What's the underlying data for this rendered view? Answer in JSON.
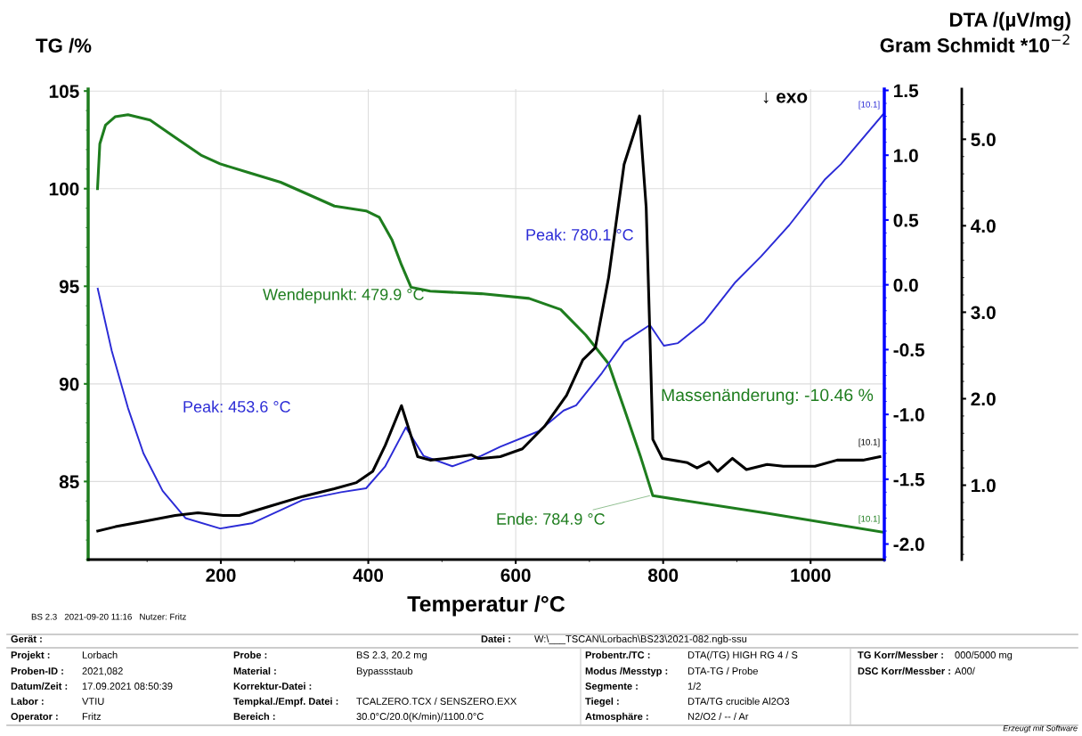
{
  "chart_data": {
    "type": "line",
    "xlabel": "Temperatur /°C",
    "ylabel": "TG /%",
    "y2label": "DTA /(µV/mg)",
    "y3label": "Gram Schmidt *10$^{−2}$",
    "xlim": [
      20,
      1100
    ],
    "xticks": [
      200,
      400,
      600,
      800,
      1000
    ],
    "ylim": [
      81,
      105.1
    ],
    "yticks": [
      85,
      90,
      95,
      100,
      105
    ],
    "y2lim": [
      -2.12,
      1.51
    ],
    "y2ticks": [
      {
        "value": -2,
        "label": "-2.0"
      },
      {
        "value": -1.5,
        "label": "-1.5"
      },
      {
        "value": -1,
        "label": "-1.0"
      },
      {
        "value": -0.5,
        "label": "-0.5"
      },
      {
        "value": 0,
        "label": "0.0"
      },
      {
        "value": 0.5,
        "label": "0.5"
      },
      {
        "value": 1,
        "label": "1.0"
      },
      {
        "value": 1.5,
        "label": "1.5"
      }
    ],
    "y3lim": [
      0.14,
      5.58
    ],
    "y3ticks": [
      {
        "value": 1,
        "label": "1.0"
      },
      {
        "value": 2,
        "label": "2.0"
      },
      {
        "value": 3,
        "label": "3.0"
      },
      {
        "value": 4,
        "label": "4.0"
      },
      {
        "value": 5,
        "label": "5.0"
      }
    ],
    "grid": true,
    "marker": "none",
    "line_style": "solid",
    "series": [
      {
        "color": "#1e7d1e",
        "axis": "y",
        "x": [
          32.7,
          35.8,
          43.6,
          56.5,
          74,
          104,
          138.5,
          173,
          199,
          238,
          281,
          320,
          354,
          397,
          415,
          432,
          445,
          458,
          484,
          553,
          618,
          661,
          695,
          726,
          747,
          769,
          786,
          941,
          1099
        ],
        "values": [
          100.0,
          102.29,
          103.26,
          103.68,
          103.79,
          103.51,
          102.61,
          101.72,
          101.27,
          100.82,
          100.33,
          99.68,
          99.11,
          98.86,
          98.53,
          97.39,
          96.1,
          94.95,
          94.75,
          94.62,
          94.38,
          93.81,
          92.5,
          91.03,
          88.75,
          86.31,
          84.27,
          83.37,
          82.4
        ]
      },
      {
        "color": "#2b2bd6",
        "axis": "y2",
        "x": [
          33,
          52,
          74,
          95,
          121,
          152,
          199,
          242,
          311,
          363,
          397,
          423,
          451,
          475,
          514,
          553,
          579,
          631,
          665,
          682,
          717,
          747,
          782,
          801,
          820,
          855,
          898,
          933,
          971,
          1019,
          1041,
          1099
        ],
        "values": [
          -0.03,
          -0.51,
          -0.95,
          -1.3,
          -1.59,
          -1.8,
          -1.88,
          -1.84,
          -1.66,
          -1.6,
          -1.57,
          -1.4,
          -1.1,
          -1.32,
          -1.4,
          -1.32,
          -1.25,
          -1.13,
          -0.97,
          -0.93,
          -0.68,
          -0.44,
          -0.31,
          -0.47,
          -0.45,
          -0.29,
          0.02,
          0.22,
          0.46,
          0.81,
          0.93,
          1.32
        ]
      },
      {
        "color": "#000000",
        "axis": "y3",
        "x": [
          33,
          57,
          95,
          138,
          169,
          203,
          225,
          268,
          311,
          354,
          384,
          406,
          423,
          445,
          458,
          467,
          484,
          505,
          540,
          549,
          553,
          579,
          609,
          639,
          669,
          691,
          708,
          726,
          747,
          768,
          777,
          782,
          786,
          799,
          833,
          846,
          862,
          874,
          894,
          913,
          941,
          963,
          1006,
          1036,
          1071,
          1094
        ],
        "values": [
          0.47,
          0.52,
          0.58,
          0.65,
          0.68,
          0.65,
          0.65,
          0.76,
          0.87,
          0.96,
          1.03,
          1.16,
          1.46,
          1.92,
          1.57,
          1.33,
          1.29,
          1.31,
          1.35,
          1.31,
          1.31,
          1.33,
          1.42,
          1.68,
          2.04,
          2.45,
          2.59,
          3.4,
          4.71,
          5.27,
          4.21,
          2.74,
          1.53,
          1.31,
          1.26,
          1.2,
          1.27,
          1.16,
          1.31,
          1.18,
          1.24,
          1.22,
          1.22,
          1.29,
          1.29,
          1.33
        ]
      }
    ],
    "annotations": [
      {
        "text": "Wendepunkt: 479.9 °C",
        "x": 479.9,
        "y": 94.8
      },
      "Peak: 453.6 °C",
      "Peak: 780.1 °C",
      {
        "text": "Ende: 784.9 °C",
        "x": 784.9,
        "y": 84.3
      },
      {
        "text": "Massenänderung: -10.46 %",
        "x": 785,
        "y": 90
      },
      "[10.1]",
      "[10.1]",
      {
        "text": "[10.1]",
        "x": 1099,
        "y": 82.4
      },
      "↓ exo",
      "BS 2.3   2021-09-20 11:16   Nutzer: Fritz",
      "Gerät :",
      "Datei :",
      "W:\\___TSCAN\\Lorbach\\BS23\\2021-082.ngb-ssu",
      "Projekt :",
      "Proben-ID :",
      "Datum/Zeit :",
      "Labor :",
      "Operator :",
      "Lorbach",
      "2021,082",
      "17.09.2021 08:50:39",
      "VTIU",
      "Fritz",
      "Probe :",
      "Material :",
      "Korrektur-Datei :",
      "Tempkal./Empf. Datei :",
      "Bereich :",
      "BS 2.3, 20.2 mg",
      "Bypassstaub",
      "TCALZERO.TCX / SENSZERO.EXX",
      "30.0°C/20.0(K/min)/1100.0°C",
      "Probentr./TC :",
      "Modus /Messtyp :",
      "Segmente :",
      "Tiegel :",
      "Atmosphäre :",
      "DTA(/TG) HIGH RG 4 / S",
      "DTA-TG / Probe",
      "1/2",
      "DTA/TG crucible Al2O3",
      "N2/O2 / -- / Ar",
      "TG Korr/Messber :",
      "DSC Korr/Messber :",
      "000/5000 mg",
      "A00/",
      "Erzeugt mit Software"
    ]
  }
}
